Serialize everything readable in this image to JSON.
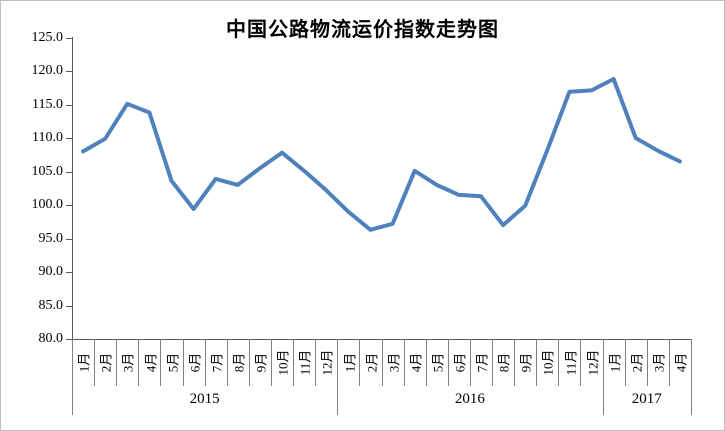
{
  "title": "中国公路物流运价指数走势图",
  "chart_data": {
    "type": "line",
    "title": "中国公路物流运价指数走势图",
    "xlabel": "",
    "ylabel": "",
    "ylim": [
      80.0,
      125.0
    ],
    "y_tick_labels": [
      "80.0",
      "85.0",
      "90.0",
      "95.0",
      "100.0",
      "105.0",
      "110.0",
      "115.0",
      "120.0",
      "125.0"
    ],
    "grid": false,
    "legend": "none",
    "line_color": "#4F81BD",
    "axis_color": "#595959",
    "x_groups": [
      {
        "year": "2015",
        "months": [
          "1月",
          "2月",
          "3月",
          "4月",
          "5月",
          "6月",
          "7月",
          "8月",
          "9月",
          "10月",
          "11月",
          "12月"
        ]
      },
      {
        "year": "2016",
        "months": [
          "1月",
          "2月",
          "3月",
          "4月",
          "5月",
          "6月",
          "7月",
          "8月",
          "9月",
          "10月",
          "11月",
          "12月"
        ]
      },
      {
        "year": "2017",
        "months": [
          "1月",
          "2月",
          "3月",
          "4月"
        ]
      }
    ],
    "series": [
      {
        "name": "中国公路物流运价指数",
        "values": [
          108.0,
          109.9,
          115.1,
          113.8,
          103.6,
          99.4,
          103.9,
          103.0,
          105.5,
          107.8,
          105.1,
          102.2,
          99.0,
          96.3,
          97.2,
          105.1,
          103.0,
          101.5,
          101.3,
          97.0,
          99.9,
          108.2,
          116.9,
          117.1,
          118.8,
          110.0,
          108.1,
          106.5
        ]
      }
    ]
  }
}
